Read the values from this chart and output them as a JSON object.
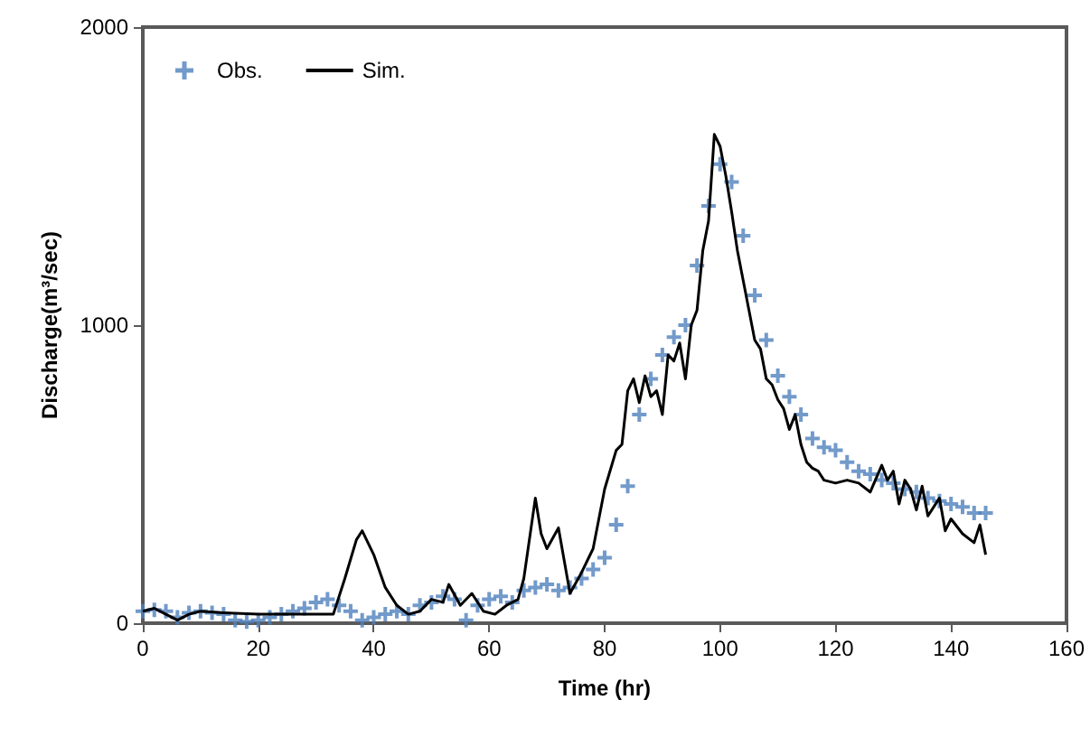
{
  "chart_data": {
    "type": "line",
    "xlabel": "Time (hr)",
    "ylabel": "Discharge(m³/sec)",
    "xlim": [
      0,
      160
    ],
    "xticks": [
      0,
      20,
      40,
      60,
      80,
      100,
      120,
      140,
      160
    ],
    "ylim": [
      0,
      2000
    ],
    "yticks": [
      0,
      1000,
      2000
    ],
    "grid": false,
    "legend": "top left",
    "series": [
      {
        "name": "Obs.",
        "type": "scatter",
        "marker": "cross",
        "color": "#4f81bd",
        "x": [
          0,
          2,
          4,
          6,
          8,
          10,
          12,
          14,
          16,
          18,
          20,
          22,
          24,
          26,
          28,
          30,
          32,
          34,
          36,
          38,
          40,
          42,
          44,
          46,
          48,
          50,
          52,
          54,
          56,
          58,
          60,
          62,
          64,
          66,
          68,
          70,
          72,
          74,
          76,
          78,
          80,
          82,
          84,
          86,
          88,
          90,
          92,
          94,
          96,
          98,
          100,
          102,
          104,
          106,
          108,
          110,
          112,
          114,
          116,
          118,
          120,
          122,
          124,
          126,
          128,
          130,
          132,
          134,
          136,
          138,
          140,
          142,
          144,
          146
        ],
        "values": [
          40,
          45,
          40,
          20,
          35,
          40,
          35,
          30,
          10,
          5,
          10,
          20,
          30,
          40,
          50,
          70,
          80,
          60,
          40,
          10,
          20,
          30,
          40,
          30,
          60,
          70,
          90,
          80,
          10,
          60,
          80,
          90,
          70,
          110,
          120,
          130,
          110,
          120,
          150,
          180,
          220,
          330,
          460,
          700,
          820,
          900,
          960,
          1000,
          1200,
          1400,
          1540,
          1480,
          1300,
          1100,
          950,
          830,
          760,
          700,
          620,
          590,
          580,
          540,
          510,
          500,
          480,
          470,
          450,
          440,
          420,
          410,
          400,
          390,
          370,
          370
        ]
      },
      {
        "name": "Sim.",
        "marker": "none",
        "line_style": "solid",
        "color": "#000000",
        "x": [
          0,
          2,
          4,
          6,
          8,
          10,
          14,
          20,
          30,
          33,
          35,
          37,
          38,
          40,
          42,
          44,
          46,
          48,
          50,
          52,
          53,
          55,
          57,
          59,
          61,
          63,
          65,
          66,
          68,
          69,
          70,
          72,
          74,
          76,
          78,
          80,
          82,
          83,
          84,
          85,
          86,
          87,
          88,
          89,
          90,
          91,
          92,
          93,
          94,
          95,
          96,
          97,
          98,
          99,
          100,
          101,
          102,
          103,
          104,
          105,
          106,
          107,
          108,
          109,
          110,
          111,
          112,
          113,
          114,
          115,
          116,
          117,
          118,
          120,
          122,
          124,
          126,
          128,
          129,
          130,
          131,
          132,
          133,
          134,
          135,
          136,
          138,
          139,
          140,
          142,
          144,
          145,
          146
        ],
        "values": [
          40,
          50,
          30,
          10,
          30,
          40,
          35,
          30,
          30,
          30,
          150,
          280,
          310,
          230,
          120,
          60,
          30,
          40,
          80,
          70,
          130,
          60,
          100,
          40,
          30,
          60,
          80,
          150,
          420,
          300,
          250,
          320,
          100,
          170,
          250,
          450,
          580,
          600,
          780,
          820,
          740,
          830,
          760,
          780,
          700,
          900,
          880,
          940,
          820,
          1000,
          1050,
          1250,
          1350,
          1640,
          1600,
          1500,
          1380,
          1250,
          1150,
          1050,
          950,
          920,
          820,
          800,
          750,
          720,
          650,
          700,
          600,
          540,
          520,
          510,
          480,
          470,
          480,
          470,
          440,
          530,
          480,
          510,
          400,
          480,
          450,
          380,
          460,
          360,
          420,
          310,
          350,
          300,
          270,
          330,
          230
        ]
      }
    ]
  }
}
